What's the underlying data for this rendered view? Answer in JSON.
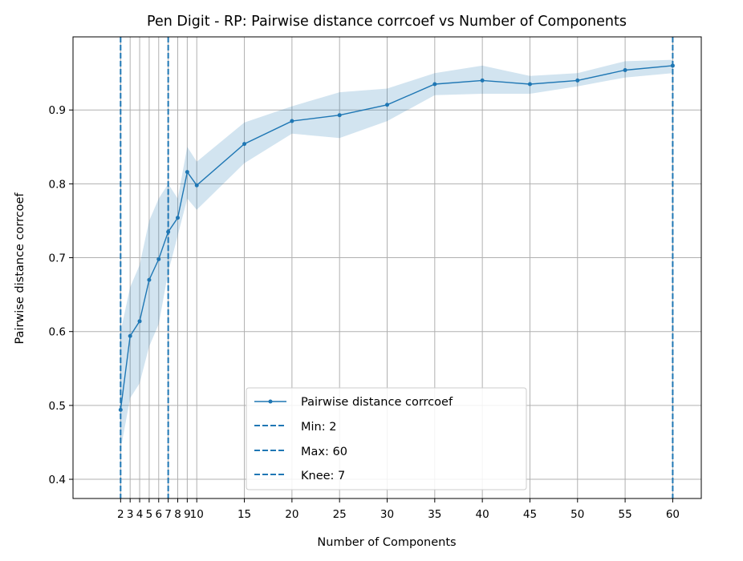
{
  "chart_data": {
    "type": "line",
    "title": "Pen Digit - RP: Pairwise distance corrcoef vs Number of Components",
    "xlabel": "Number of Components",
    "ylabel": "Pairwise distance corrcoef",
    "xlim": [
      -3,
      63
    ],
    "ylim": [
      0.374,
      0.999
    ],
    "xticks": [
      2,
      3,
      4,
      5,
      6,
      7,
      8,
      9,
      10,
      15,
      20,
      25,
      30,
      35,
      40,
      45,
      50,
      55,
      60
    ],
    "yticks": [
      0.4,
      0.5,
      0.6,
      0.7,
      0.8,
      0.9
    ],
    "ytick_labels": [
      "0.4",
      "0.5",
      "0.6",
      "0.7",
      "0.8",
      "0.9"
    ],
    "grid": true,
    "legend_position": "lower center",
    "series": [
      {
        "name": "Pairwise distance corrcoef",
        "color": "#1f77b4",
        "x": [
          2,
          3,
          4,
          5,
          6,
          7,
          8,
          9,
          10,
          15,
          20,
          25,
          30,
          35,
          40,
          45,
          50,
          55,
          60
        ],
        "y": [
          0.494,
          0.594,
          0.614,
          0.67,
          0.698,
          0.735,
          0.754,
          0.816,
          0.798,
          0.854,
          0.885,
          0.893,
          0.907,
          0.935,
          0.94,
          0.935,
          0.94,
          0.954,
          0.96
        ],
        "y_lower": [
          0.44,
          0.51,
          0.53,
          0.58,
          0.61,
          0.68,
          0.73,
          0.78,
          0.765,
          0.828,
          0.868,
          0.862,
          0.885,
          0.92,
          0.922,
          0.922,
          0.932,
          0.944,
          0.95
        ],
        "y_upper": [
          0.6,
          0.66,
          0.69,
          0.75,
          0.78,
          0.8,
          0.78,
          0.85,
          0.83,
          0.883,
          0.905,
          0.924,
          0.929,
          0.95,
          0.96,
          0.946,
          0.95,
          0.966,
          0.968
        ]
      }
    ],
    "vlines": [
      {
        "label": "Min: 2",
        "x": 2,
        "color": "#1f77b4"
      },
      {
        "label": "Max: 60",
        "x": 60,
        "color": "#1f77b4"
      },
      {
        "label": "Knee: 7",
        "x": 7,
        "color": "#1f77b4"
      }
    ]
  }
}
